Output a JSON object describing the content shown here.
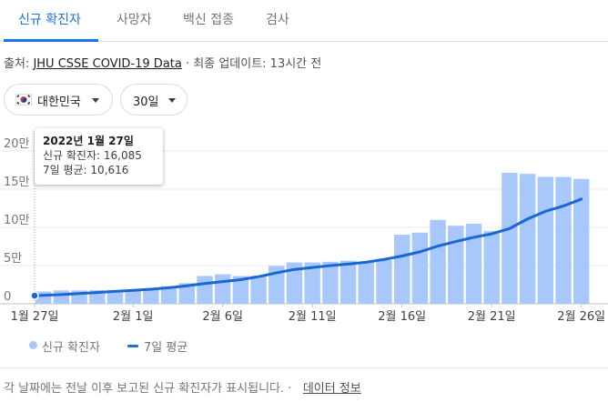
{
  "tabs": [
    {
      "label": "신규 확진자",
      "active": true
    },
    {
      "label": "사망자",
      "active": false
    },
    {
      "label": "백신 접종",
      "active": false
    },
    {
      "label": "검사",
      "active": false
    }
  ],
  "source": {
    "prefix": "출처: ",
    "link": "JHU CSSE COVID-19 Data",
    "separator": " · ",
    "updated": "최종 업데이트: 13시간 전"
  },
  "filters": {
    "region": "대한민국",
    "period": "30일"
  },
  "tooltip": {
    "title": "2022년 1월 27일",
    "line1": "신규 확진자: 16,085",
    "line2": "7일 평균: 10,616"
  },
  "legend": {
    "bars": "신규 확진자",
    "line": "7일 평균"
  },
  "footer": {
    "text": "각 날짜에는 전날 이후 보고된 신규 확진자가 표시됩니다.",
    "separator": " · ",
    "link": "데이터 정보"
  },
  "colors": {
    "accent": "#1a73e8",
    "bar": "#a8c7fa",
    "line": "#1967d2"
  },
  "chart_data": {
    "type": "bar",
    "dates": [
      "1월 27일",
      "1월 28일",
      "1월 29일",
      "1월 30일",
      "1월 31일",
      "2월 1일",
      "2월 2일",
      "2월 3일",
      "2월 4일",
      "2월 5일",
      "2월 6일",
      "2월 7일",
      "2월 8일",
      "2월 9일",
      "2월 10일",
      "2월 11일",
      "2월 12일",
      "2월 13일",
      "2월 14일",
      "2월 15일",
      "2월 16일",
      "2월 17일",
      "2월 18일",
      "2월 19일",
      "2월 20일",
      "2월 21일",
      "2월 22일",
      "2월 23일",
      "2월 24일",
      "2월 25일",
      "2월 26일"
    ],
    "series": [
      {
        "name": "신규 확진자",
        "values": [
          16085,
          17500,
          17500,
          17800,
          18000,
          18500,
          20200,
          22800,
          27000,
          36400,
          38700,
          36300,
          36700,
          49500,
          54100,
          54100,
          54900,
          56400,
          53900,
          57100,
          90400,
          93100,
          109800,
          102200,
          104800,
          95400,
          171400,
          170000,
          166200,
          166000,
          163500
        ]
      },
      {
        "name": "7일 평균",
        "values": [
          10616,
          12000,
          13400,
          14800,
          16200,
          17600,
          19000,
          21000,
          23500,
          26500,
          29000,
          31500,
          35500,
          40500,
          45000,
          47500,
          50000,
          52000,
          54500,
          58000,
          62500,
          68000,
          75500,
          81500,
          87000,
          91500,
          98500,
          111000,
          121000,
          128000,
          137000
        ]
      }
    ],
    "x_tick_labels": [
      "1월 27일",
      "2월 1일",
      "2월 6일",
      "2월 11일",
      "2월 16일",
      "2월 21일",
      "2월 26일"
    ],
    "y_tick_labels": [
      "0",
      "5만",
      "10만",
      "15만",
      "20만"
    ],
    "y_ticks": [
      0,
      50000,
      100000,
      150000,
      200000
    ],
    "ylim": [
      0,
      200000
    ],
    "grid": true,
    "highlighted_date": "1월 27일"
  }
}
